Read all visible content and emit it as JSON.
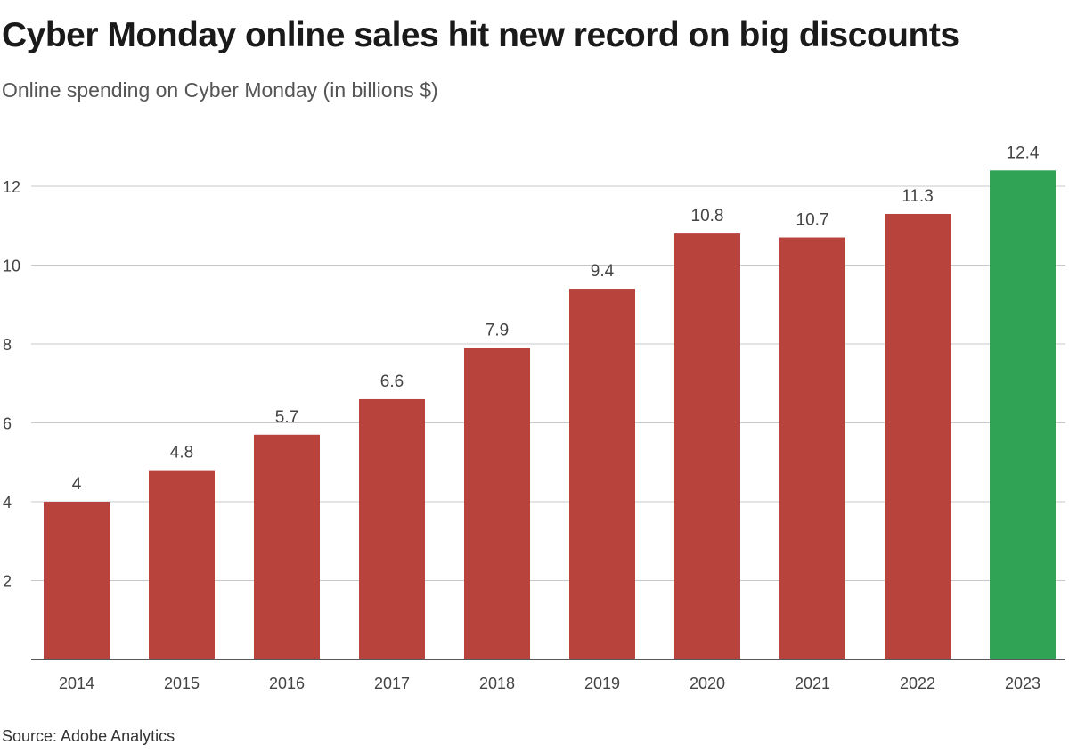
{
  "chart_data": {
    "type": "bar",
    "title": "Cyber Monday online sales hit new record on big discounts",
    "subtitle": "Online spending on Cyber Monday (in billions $)",
    "source": "Source: Adobe Analytics",
    "categories": [
      "2014",
      "2015",
      "2016",
      "2017",
      "2018",
      "2019",
      "2020",
      "2021",
      "2022",
      "2023"
    ],
    "values": [
      4,
      4.8,
      5.7,
      6.6,
      7.9,
      9.4,
      10.8,
      10.7,
      11.3,
      12.4
    ],
    "data_labels": [
      "4",
      "4.8",
      "5.7",
      "6.6",
      "7.9",
      "9.4",
      "10.8",
      "10.7",
      "11.3",
      "12.4"
    ],
    "y_ticks": [
      2,
      4,
      6,
      8,
      10,
      12
    ],
    "ylim": [
      0,
      12.5
    ],
    "grid": true,
    "colors": {
      "default_bar": "#b8433c",
      "highlight_bar": "#31a354",
      "highlight_category": "2023"
    }
  }
}
